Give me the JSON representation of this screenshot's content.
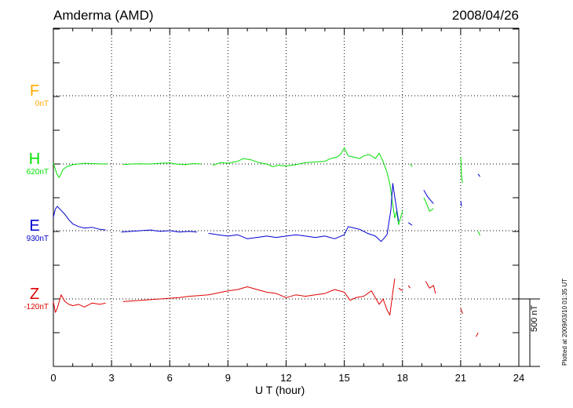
{
  "header": {
    "station": "Amderma (AMD)",
    "date": "2008/04/26"
  },
  "components": [
    {
      "letter": "F",
      "base": "0nT",
      "color": "#ffaa00"
    },
    {
      "letter": "H",
      "base": "620nT",
      "color": "#00e000"
    },
    {
      "letter": "E",
      "base": "930nT",
      "color": "#0000d0"
    },
    {
      "letter": "Z",
      "base": "-120nT",
      "color": "#e00000"
    }
  ],
  "axis": {
    "xlabel": "U T (hour)",
    "ticks": [
      "0",
      "3",
      "6",
      "9",
      "12",
      "15",
      "18",
      "21",
      "24"
    ]
  },
  "scale_bar": {
    "label": "500 nT",
    "value_nT": 500
  },
  "footer": {
    "plotted": "Plotted at 2009/03/10 01:35 UT"
  },
  "chart_data": {
    "type": "line",
    "title": "Amderma (AMD)",
    "subtitle": "2008/04/26",
    "xlabel": "U T (hour)",
    "ylabel": "",
    "xlim": [
      0,
      24
    ],
    "grid": true,
    "units": "nT",
    "series": [
      {
        "name": "F",
        "color": "#ffaa00",
        "values": []
      },
      {
        "name": "H",
        "color": "#00e000",
        "x": [
          0,
          0.1,
          0.2,
          0.3,
          0.4,
          0.5,
          0.7,
          1.0,
          1.3,
          1.6,
          2.0,
          2.5,
          2.8,
          null,
          3.6,
          4.0,
          4.5,
          5.0,
          5.5,
          6.0,
          6.3,
          6.8,
          7.2,
          7.6,
          null,
          8.2,
          8.6,
          9.0,
          9.5,
          9.8,
          10.2,
          10.6,
          11.0,
          11.3,
          11.6,
          12.0,
          12.5,
          13.0,
          13.5,
          14.0,
          14.3,
          14.6,
          14.8,
          15.0,
          15.2,
          15.5,
          15.8,
          16.0,
          16.3,
          16.6,
          16.8,
          17.0,
          17.2,
          17.35,
          17.5,
          17.6,
          17.7,
          17.8,
          18.0,
          null,
          18.4,
          18.5,
          null,
          19.1,
          19.2,
          19.4,
          19.6,
          null,
          21.0,
          21.05,
          21.1,
          null,
          21.9,
          22.0
        ],
        "values": [
          5,
          -40,
          -80,
          -100,
          -70,
          -40,
          -20,
          -5,
          0,
          5,
          3,
          0,
          2,
          null,
          -5,
          0,
          2,
          0,
          5,
          8,
          0,
          -5,
          3,
          0,
          null,
          -10,
          10,
          5,
          20,
          40,
          30,
          10,
          0,
          -20,
          -10,
          -15,
          -5,
          10,
          15,
          20,
          40,
          50,
          70,
          120,
          60,
          50,
          40,
          60,
          70,
          40,
          80,
          20,
          -60,
          -150,
          -300,
          -400,
          -350,
          -450,
          -350,
          null,
          0,
          -20,
          null,
          -250,
          -280,
          -350,
          -330,
          null,
          50,
          -100,
          -140,
          null,
          -500,
          -530
        ],
        "base_nT": 620
      },
      {
        "name": "E",
        "color": "#0000d0",
        "x": [
          0,
          0.1,
          0.2,
          0.4,
          0.6,
          0.8,
          1.0,
          1.3,
          1.6,
          2.0,
          2.4,
          2.7,
          null,
          3.5,
          4.0,
          4.5,
          5.0,
          5.5,
          6.0,
          6.5,
          7.0,
          7.4,
          null,
          8.0,
          8.5,
          9.0,
          9.5,
          10.0,
          10.5,
          11.0,
          11.5,
          12.0,
          12.5,
          13.0,
          13.5,
          14.0,
          14.5,
          15.0,
          15.2,
          15.5,
          15.8,
          16.2,
          16.6,
          16.9,
          17.2,
          17.4,
          17.5,
          17.6,
          17.8,
          null,
          18.3,
          18.5,
          null,
          19.1,
          19.3,
          19.6,
          null,
          21.0,
          21.05,
          null,
          21.9,
          22.0
        ],
        "values": [
          100,
          160,
          180,
          150,
          120,
          80,
          50,
          30,
          20,
          25,
          10,
          5,
          null,
          -10,
          -5,
          0,
          5,
          -5,
          0,
          -10,
          -5,
          -10,
          null,
          -20,
          -30,
          -40,
          -30,
          -60,
          -50,
          -40,
          -50,
          -40,
          -30,
          -40,
          -50,
          -40,
          -60,
          -30,
          30,
          20,
          10,
          -20,
          -40,
          -80,
          -30,
          150,
          350,
          250,
          70,
          null,
          60,
          40,
          null,
          300,
          250,
          200,
          null,
          220,
          180,
          null,
          420,
          400
        ],
        "base_nT": 930
      },
      {
        "name": "Z",
        "color": "#e00000",
        "x": [
          0,
          0.1,
          0.2,
          0.4,
          0.6,
          0.8,
          1.0,
          1.3,
          1.6,
          2.0,
          2.4,
          2.7,
          null,
          3.6,
          4.0,
          4.5,
          5.0,
          5.5,
          6.0,
          6.5,
          7.0,
          7.5,
          8.0,
          8.5,
          9.0,
          9.5,
          10.0,
          10.5,
          11.0,
          11.5,
          12.0,
          12.5,
          13.0,
          13.5,
          14.0,
          14.5,
          15.0,
          15.3,
          15.6,
          16.0,
          16.4,
          16.8,
          17.0,
          17.2,
          17.35,
          17.5,
          17.6,
          null,
          17.8,
          18.0,
          null,
          18.3,
          18.4,
          null,
          19.2,
          19.4,
          19.6,
          19.7,
          null,
          21.0,
          21.1,
          null,
          21.8,
          21.9
        ],
        "values": [
          -20,
          -100,
          -70,
          30,
          -20,
          -40,
          -50,
          -40,
          -60,
          -30,
          -40,
          -30,
          null,
          -20,
          -15,
          -10,
          -5,
          0,
          5,
          10,
          20,
          25,
          30,
          45,
          60,
          70,
          90,
          70,
          50,
          40,
          10,
          30,
          20,
          30,
          40,
          70,
          50,
          -10,
          10,
          20,
          60,
          -40,
          0,
          -80,
          -120,
          50,
          150,
          null,
          80,
          60,
          null,
          100,
          80,
          null,
          130,
          80,
          100,
          40,
          null,
          -70,
          -110,
          null,
          -280,
          -250
        ],
        "base_nT": -120
      }
    ]
  }
}
